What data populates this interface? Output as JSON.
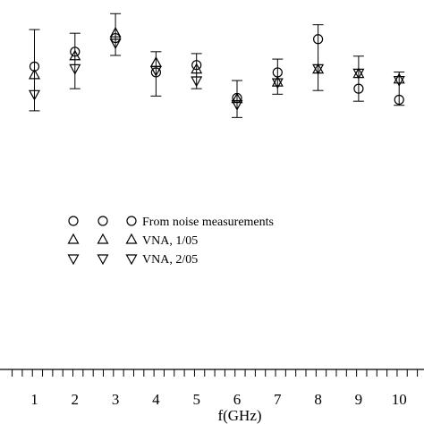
{
  "chart_data": {
    "type": "scatter",
    "xlabel": "f(GHz)",
    "ylabel": "",
    "title": "",
    "x_ticks": [
      1,
      2,
      3,
      4,
      5,
      6,
      7,
      8,
      9,
      10
    ],
    "xlim": [
      0.45,
      10.45
    ],
    "ylim": [
      0,
      1
    ],
    "y_tick_labels_shown": false,
    "grid": false,
    "legend_position": "center-left",
    "series": [
      {
        "name": "From noise measurements",
        "marker": "circle",
        "points": [
          {
            "x": 1,
            "y": 0.82
          },
          {
            "x": 2,
            "y": 0.86
          },
          {
            "x": 3,
            "y": 0.897
          },
          {
            "x": 4,
            "y": 0.804
          },
          {
            "x": 5,
            "y": 0.824
          },
          {
            "x": 6,
            "y": 0.735
          },
          {
            "x": 7,
            "y": 0.804
          },
          {
            "x": 8,
            "y": 0.894
          },
          {
            "x": 9,
            "y": 0.76
          },
          {
            "x": 10,
            "y": 0.73
          }
        ],
        "error_bars": [
          {
            "x": 1,
            "low": 0.7,
            "high": 0.92
          },
          {
            "x": 2,
            "low": 0.76,
            "high": 0.91
          },
          {
            "x": 3,
            "low": 0.85,
            "high": 0.963
          },
          {
            "x": 4,
            "low": 0.74,
            "high": 0.86
          },
          {
            "x": 5,
            "low": 0.76,
            "high": 0.855
          },
          {
            "x": 6,
            "low": 0.682,
            "high": 0.782
          },
          {
            "x": 7,
            "low": 0.745,
            "high": 0.84
          },
          {
            "x": 8,
            "low": 0.755,
            "high": 0.933
          },
          {
            "x": 9,
            "low": 0.726,
            "high": 0.848
          },
          {
            "x": 10,
            "low": 0.715,
            "high": 0.805
          }
        ]
      },
      {
        "name": "VNA, 1/05",
        "marker": "triangle-up",
        "points": [
          {
            "x": 1,
            "y": 0.797
          },
          {
            "x": 2,
            "y": 0.848
          },
          {
            "x": 3,
            "y": 0.91
          },
          {
            "x": 4,
            "y": 0.83
          },
          {
            "x": 5,
            "y": 0.812
          },
          {
            "x": 6,
            "y": 0.732
          },
          {
            "x": 7,
            "y": 0.777
          },
          {
            "x": 8,
            "y": 0.812
          },
          {
            "x": 9,
            "y": 0.8
          },
          {
            "x": 10,
            "y": 0.785
          }
        ]
      },
      {
        "name": "VNA, 2/05",
        "marker": "triangle-down",
        "points": [
          {
            "x": 1,
            "y": 0.745
          },
          {
            "x": 2,
            "y": 0.815
          },
          {
            "x": 3,
            "y": 0.884
          },
          {
            "x": 4,
            "y": 0.81
          },
          {
            "x": 5,
            "y": 0.782
          },
          {
            "x": 6,
            "y": 0.718
          },
          {
            "x": 7,
            "y": 0.777
          },
          {
            "x": 8,
            "y": 0.815
          },
          {
            "x": 9,
            "y": 0.803
          },
          {
            "x": 10,
            "y": 0.783
          }
        ]
      }
    ]
  }
}
